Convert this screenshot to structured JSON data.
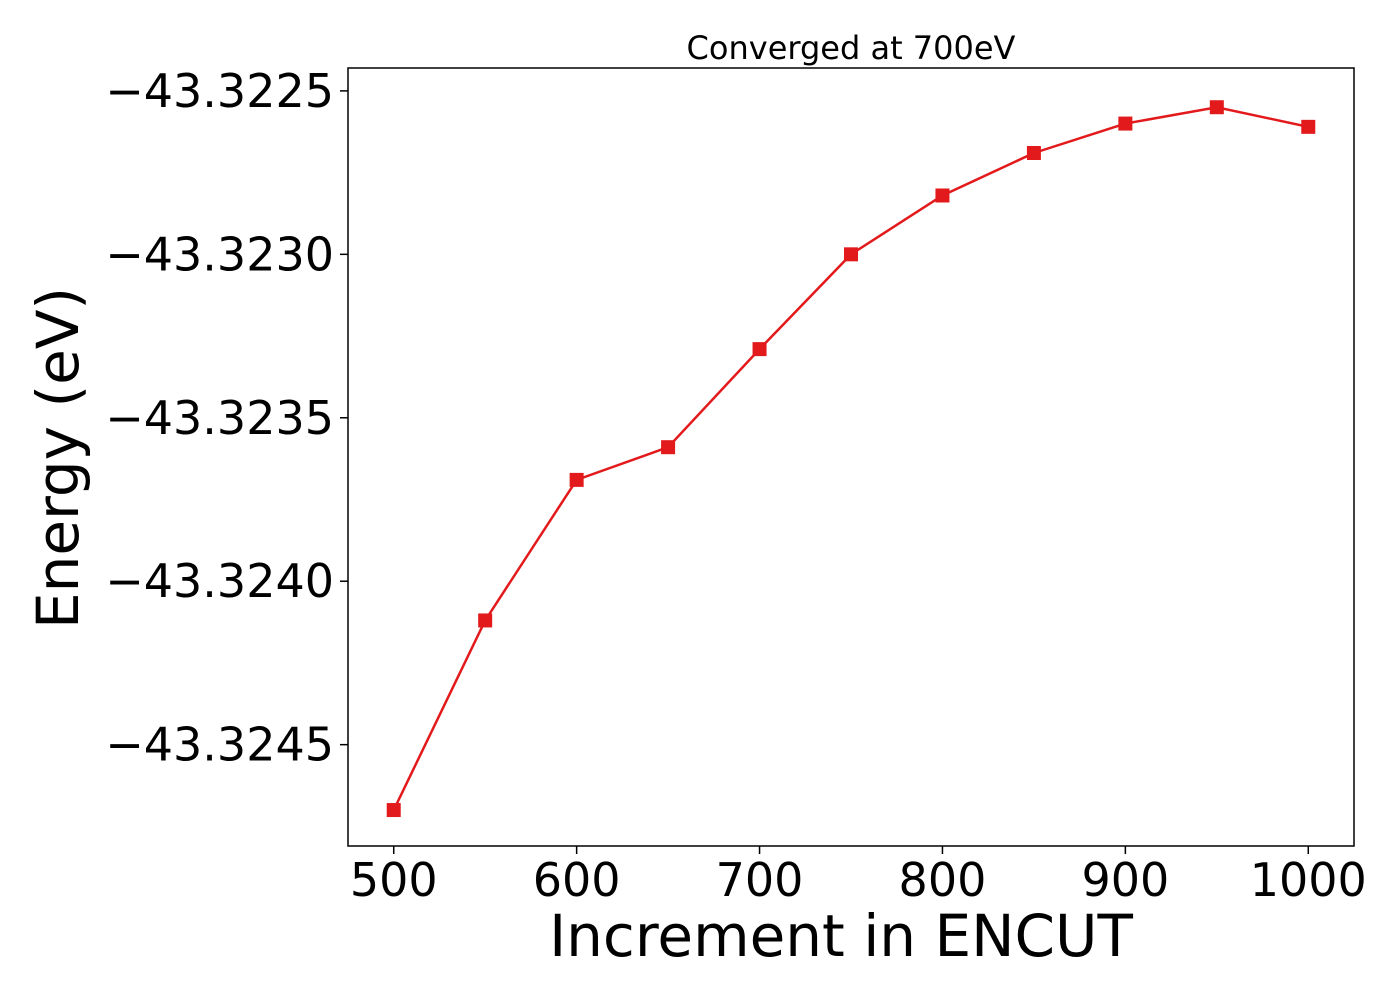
{
  "chart_data": {
    "type": "line",
    "title": "Converged at 700eV",
    "xlabel": "Increment in ENCUT",
    "ylabel": "Energy (eV)",
    "x": [
      500,
      550,
      600,
      650,
      700,
      750,
      800,
      850,
      900,
      950,
      1000
    ],
    "series": [
      {
        "values": [
          -43.3247,
          -43.32412,
          -43.32369,
          -43.32359,
          -43.32329,
          -43.323,
          -43.32282,
          -43.32269,
          -43.3226,
          -43.32255,
          -43.32261
        ],
        "color": "#e31a1c",
        "marker": "square"
      }
    ],
    "xlim": [
      475,
      1025
    ],
    "ylim": [
      -43.32481,
      -43.32243
    ],
    "xticks": [
      500,
      600,
      700,
      800,
      900,
      1000
    ],
    "xtick_labels": [
      "500",
      "600",
      "700",
      "800",
      "900",
      "1000"
    ],
    "yticks": [
      -43.3225,
      -43.323,
      -43.3235,
      -43.324,
      -43.3245
    ],
    "ytick_labels": [
      "−43.3225",
      "−43.3230",
      "−43.3235",
      "−43.3240",
      "−43.3245"
    ],
    "grid": false,
    "legend": "none"
  }
}
